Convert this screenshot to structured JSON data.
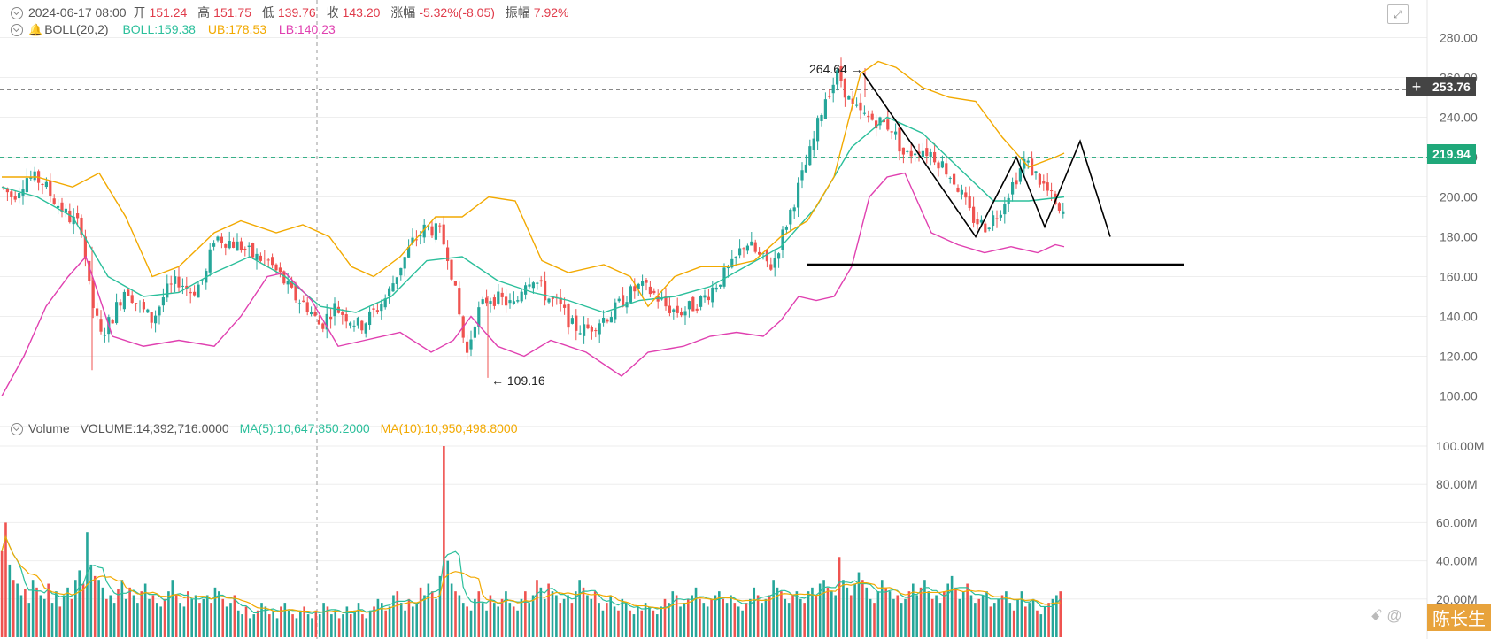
{
  "ohlc": {
    "date": "2024-06-17 08:00",
    "open_label": "开",
    "open": "151.24",
    "high_label": "高",
    "high": "151.75",
    "low_label": "低",
    "low": "139.76",
    "close_label": "收",
    "close": "143.20",
    "change_label": "涨幅",
    "change": "-5.32%(-8.05)",
    "amp_label": "振幅",
    "amp": "7.92%"
  },
  "boll": {
    "label": "BOLL(20,2)",
    "mid": "BOLL:159.38",
    "ub": "UB:178.53",
    "lb": "LB:140.23"
  },
  "volume": {
    "label": "Volume",
    "value": "VOLUME:14,392,716.0000",
    "ma5": "MA(5):10,647,850.2000",
    "ma10": "MA(10):10,950,498.8000"
  },
  "price_tags": {
    "current": "253.76",
    "last": "219.94"
  },
  "watermark": {
    "prefix": "@",
    "name": "陈长生"
  },
  "colors": {
    "up": "#26a69a",
    "down": "#ef5350",
    "mid": "#2bbf9b",
    "ub": "#f2a900",
    "lb": "#e040b0",
    "grid": "#eeeeee"
  },
  "chart_data": {
    "type": "candlestick",
    "price_axis": {
      "ticks": [
        "280.00",
        "260.00",
        "240.00",
        "220.00",
        "200.00",
        "180.00",
        "160.00",
        "140.00",
        "120.00",
        "100.00"
      ],
      "ylim": [
        90,
        290
      ]
    },
    "volume_axis": {
      "ticks": [
        "100.00M",
        "80.00M",
        "60.00M",
        "40.00M",
        "20.00M"
      ],
      "ylim": [
        0,
        100
      ]
    },
    "annotations": [
      {
        "text": "264.64 →",
        "price": 264.64
      },
      {
        "text": "← 109.16",
        "price": 109.16
      }
    ],
    "price_path": [
      [
        0,
        205
      ],
      [
        12,
        200
      ],
      [
        28,
        210
      ],
      [
        45,
        208
      ],
      [
        60,
        198
      ],
      [
        75,
        190
      ],
      [
        90,
        185
      ],
      [
        100,
        150
      ],
      [
        112,
        130
      ],
      [
        125,
        140
      ],
      [
        140,
        155
      ],
      [
        155,
        145
      ],
      [
        170,
        138
      ],
      [
        185,
        152
      ],
      [
        200,
        158
      ],
      [
        215,
        152
      ],
      [
        230,
        160
      ],
      [
        240,
        180
      ],
      [
        255,
        178
      ],
      [
        270,
        175
      ],
      [
        285,
        170
      ],
      [
        300,
        168
      ],
      [
        315,
        160
      ],
      [
        330,
        150
      ],
      [
        345,
        145
      ],
      [
        360,
        135
      ],
      [
        375,
        145
      ],
      [
        390,
        140
      ],
      [
        405,
        135
      ],
      [
        420,
        142
      ],
      [
        435,
        150
      ],
      [
        450,
        165
      ],
      [
        465,
        178
      ],
      [
        480,
        185
      ],
      [
        495,
        182
      ],
      [
        505,
        170
      ],
      [
        515,
        145
      ],
      [
        525,
        120
      ],
      [
        535,
        140
      ],
      [
        550,
        150
      ],
      [
        565,
        148
      ],
      [
        580,
        145
      ],
      [
        590,
        158
      ],
      [
        600,
        160
      ],
      [
        615,
        150
      ],
      [
        630,
        145
      ],
      [
        645,
        135
      ],
      [
        660,
        133
      ],
      [
        675,
        138
      ],
      [
        690,
        142
      ],
      [
        705,
        150
      ],
      [
        720,
        155
      ],
      [
        735,
        152
      ],
      [
        750,
        145
      ],
      [
        765,
        142
      ],
      [
        780,
        145
      ],
      [
        795,
        150
      ],
      [
        810,
        158
      ],
      [
        825,
        165
      ],
      [
        840,
        178
      ],
      [
        855,
        170
      ],
      [
        870,
        165
      ],
      [
        885,
        185
      ],
      [
        900,
        205
      ],
      [
        915,
        225
      ],
      [
        930,
        250
      ],
      [
        945,
        262
      ],
      [
        960,
        245
      ],
      [
        975,
        240
      ],
      [
        990,
        238
      ],
      [
        1005,
        235
      ],
      [
        1020,
        220
      ],
      [
        1035,
        225
      ],
      [
        1050,
        222
      ],
      [
        1065,
        215
      ],
      [
        1080,
        205
      ],
      [
        1095,
        190
      ],
      [
        1110,
        185
      ],
      [
        1125,
        192
      ],
      [
        1140,
        205
      ],
      [
        1155,
        218
      ],
      [
        1170,
        210
      ],
      [
        1185,
        200
      ],
      [
        1195,
        190
      ],
      [
        1205,
        195
      ],
      [
        1215,
        218
      ]
    ],
    "boll_mid": [
      [
        0,
        205
      ],
      [
        40,
        200
      ],
      [
        80,
        190
      ],
      [
        120,
        160
      ],
      [
        160,
        150
      ],
      [
        200,
        152
      ],
      [
        240,
        162
      ],
      [
        280,
        170
      ],
      [
        320,
        160
      ],
      [
        360,
        145
      ],
      [
        400,
        142
      ],
      [
        440,
        150
      ],
      [
        480,
        168
      ],
      [
        520,
        170
      ],
      [
        560,
        158
      ],
      [
        600,
        152
      ],
      [
        640,
        148
      ],
      [
        680,
        142
      ],
      [
        720,
        148
      ],
      [
        760,
        150
      ],
      [
        800,
        155
      ],
      [
        840,
        165
      ],
      [
        880,
        175
      ],
      [
        920,
        195
      ],
      [
        960,
        225
      ],
      [
        1000,
        240
      ],
      [
        1040,
        232
      ],
      [
        1080,
        215
      ],
      [
        1120,
        198
      ],
      [
        1160,
        198
      ],
      [
        1200,
        200
      ]
    ],
    "boll_ub": [
      [
        0,
        210
      ],
      [
        40,
        210
      ],
      [
        80,
        205
      ],
      [
        110,
        212
      ],
      [
        140,
        190
      ],
      [
        170,
        160
      ],
      [
        200,
        165
      ],
      [
        240,
        182
      ],
      [
        270,
        188
      ],
      [
        310,
        182
      ],
      [
        340,
        186
      ],
      [
        370,
        180
      ],
      [
        395,
        165
      ],
      [
        420,
        160
      ],
      [
        450,
        170
      ],
      [
        490,
        190
      ],
      [
        520,
        190
      ],
      [
        550,
        200
      ],
      [
        580,
        198
      ],
      [
        610,
        168
      ],
      [
        640,
        162
      ],
      [
        680,
        166
      ],
      [
        710,
        160
      ],
      [
        730,
        145
      ],
      [
        760,
        160
      ],
      [
        790,
        165
      ],
      [
        820,
        165
      ],
      [
        850,
        168
      ],
      [
        880,
        180
      ],
      [
        910,
        188
      ],
      [
        940,
        210
      ],
      [
        970,
        262
      ],
      [
        990,
        268
      ],
      [
        1010,
        265
      ],
      [
        1040,
        255
      ],
      [
        1070,
        250
      ],
      [
        1100,
        248
      ],
      [
        1130,
        230
      ],
      [
        1160,
        215
      ],
      [
        1190,
        220
      ],
      [
        1200,
        222
      ]
    ],
    "boll_lb": [
      [
        0,
        100
      ],
      [
        25,
        120
      ],
      [
        50,
        145
      ],
      [
        75,
        160
      ],
      [
        95,
        170
      ],
      [
        110,
        150
      ],
      [
        125,
        130
      ],
      [
        160,
        125
      ],
      [
        200,
        128
      ],
      [
        240,
        125
      ],
      [
        270,
        140
      ],
      [
        300,
        160
      ],
      [
        320,
        162
      ],
      [
        350,
        148
      ],
      [
        380,
        125
      ],
      [
        410,
        128
      ],
      [
        450,
        132
      ],
      [
        485,
        122
      ],
      [
        510,
        128
      ],
      [
        530,
        140
      ],
      [
        560,
        125
      ],
      [
        590,
        120
      ],
      [
        620,
        128
      ],
      [
        660,
        122
      ],
      [
        700,
        110
      ],
      [
        730,
        122
      ],
      [
        770,
        125
      ],
      [
        800,
        130
      ],
      [
        830,
        132
      ],
      [
        860,
        130
      ],
      [
        880,
        138
      ],
      [
        900,
        150
      ],
      [
        920,
        148
      ],
      [
        940,
        150
      ],
      [
        960,
        165
      ],
      [
        980,
        200
      ],
      [
        1000,
        210
      ],
      [
        1020,
        212
      ],
      [
        1050,
        182
      ],
      [
        1080,
        176
      ],
      [
        1110,
        172
      ],
      [
        1140,
        175
      ],
      [
        1170,
        172
      ],
      [
        1190,
        176
      ],
      [
        1200,
        175
      ]
    ],
    "volume_bars": [
      45,
      60,
      38,
      30,
      28,
      22,
      25,
      18,
      30,
      26,
      22,
      20,
      28,
      18,
      24,
      16,
      22,
      26,
      20,
      30,
      35,
      28,
      55,
      38,
      32,
      30,
      26,
      20,
      22,
      18,
      25,
      30,
      20,
      26,
      22,
      18,
      24,
      28,
      20,
      22,
      18,
      16,
      20,
      24,
      30,
      22,
      18,
      16,
      24,
      20,
      22,
      18,
      20,
      22,
      18,
      26,
      24,
      20,
      16,
      18,
      22,
      14,
      12,
      16,
      10,
      12,
      14,
      18,
      16,
      12,
      14,
      10,
      16,
      18,
      14,
      12,
      10,
      14,
      16,
      12,
      10,
      14,
      12,
      18,
      16,
      12,
      14,
      10,
      12,
      16,
      12,
      14,
      18,
      12,
      10,
      14,
      16,
      20,
      18,
      14,
      16,
      22,
      24,
      18,
      14,
      20,
      16,
      18,
      26,
      22,
      28,
      24,
      20,
      32,
      100,
      40,
      28,
      24,
      22,
      18,
      16,
      14,
      20,
      24,
      18,
      14,
      22,
      18,
      16,
      20,
      24,
      18,
      16,
      14,
      20,
      24,
      18,
      22,
      30,
      26,
      20,
      28,
      24,
      22,
      18,
      20,
      22,
      18,
      24,
      30,
      26,
      22,
      20,
      24,
      18,
      14,
      18,
      22,
      16,
      14,
      20,
      18,
      14,
      12,
      16,
      14,
      18,
      16,
      14,
      12,
      16,
      20,
      18,
      24,
      22,
      16,
      18,
      20,
      22,
      26,
      20,
      18,
      16,
      20,
      22,
      24,
      20,
      18,
      22,
      18,
      16,
      14,
      18,
      20,
      26,
      22,
      18,
      20,
      22,
      30,
      26,
      24,
      20,
      18,
      22,
      24,
      20,
      18,
      24,
      26,
      22,
      28,
      30,
      26,
      24,
      22,
      42,
      30,
      26,
      22,
      28,
      34,
      30,
      26,
      20,
      18,
      24,
      30,
      26,
      24,
      20,
      22,
      18,
      20,
      24,
      28,
      22,
      26,
      30,
      24,
      20,
      22,
      18,
      24,
      28,
      32,
      26,
      20,
      24,
      28,
      22,
      18,
      20,
      22,
      24,
      16,
      18,
      20,
      22,
      24,
      18,
      14,
      20,
      24,
      16,
      18,
      20,
      14,
      12,
      16,
      18,
      20,
      22,
      24
    ]
  }
}
